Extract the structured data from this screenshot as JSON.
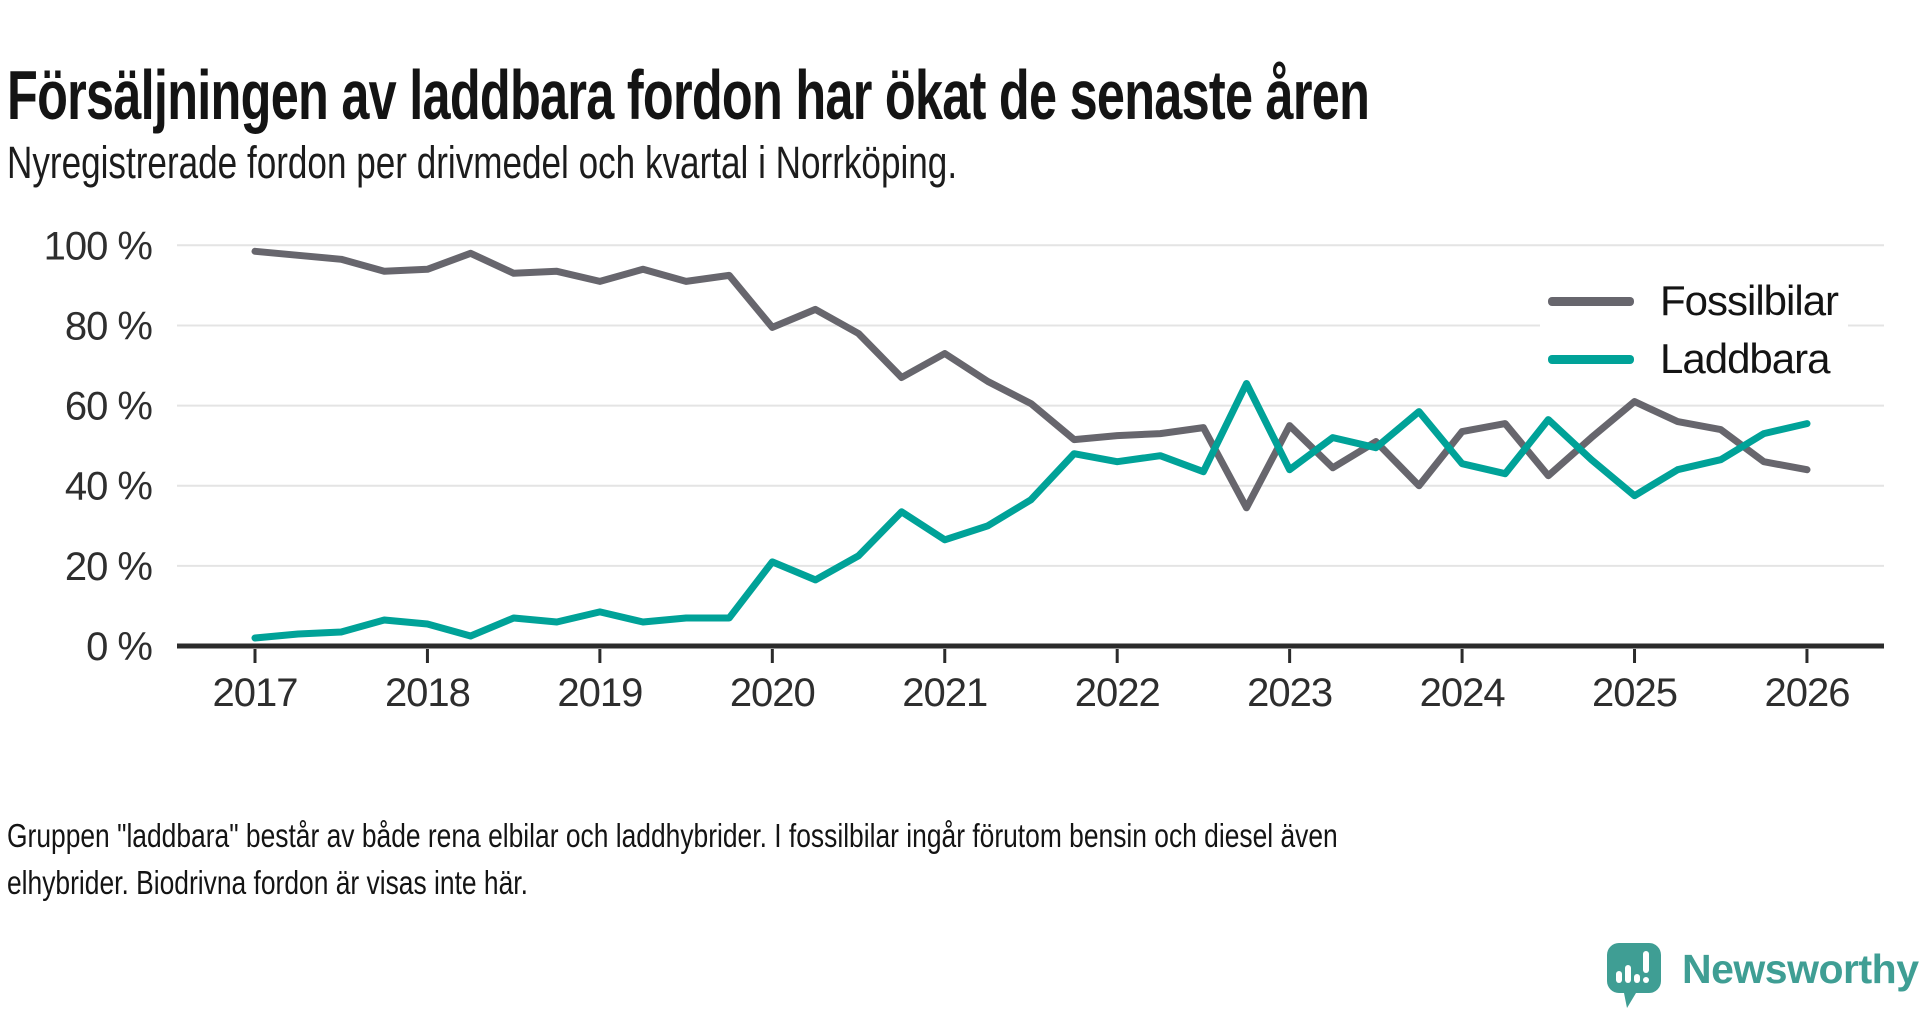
{
  "title": "Försäljningen av laddbara fordon har ökat de senaste åren",
  "subtitle": "Nyregistrerade fordon per drivmedel och kvartal i Norrköping.",
  "footnote": {
    "line1": "Gruppen \"laddbara\" består av både rena elbilar och laddhybrider. I fossilbilar ingår förutom bensin och diesel även",
    "line2": "elhybrider. Biodrivna fordon är visas inte här."
  },
  "logo": {
    "text": "Newsworthy",
    "color": "#3f9e94",
    "icon": "speech-bubble-bar-chart-exclamation"
  },
  "chart_data": {
    "type": "line",
    "title": "Nyregistrerade fordon per drivmedel och kvartal i Norrköping",
    "unit": "%",
    "ylim": [
      0,
      100
    ],
    "grid": "horizontal",
    "legend_position": "top-right",
    "y_ticks": [
      0,
      20,
      40,
      60,
      80,
      100
    ],
    "y_tick_labels": [
      "0 %",
      "20 %",
      "40 %",
      "60 %",
      "80 %",
      "100 %"
    ],
    "x_tick_labels": [
      "2017",
      "2018",
      "2019",
      "2020",
      "2021",
      "2022",
      "2023",
      "2024",
      "2025",
      "2026"
    ],
    "quarters": [
      "2017Q1",
      "2017Q2",
      "2017Q3",
      "2017Q4",
      "2018Q1",
      "2018Q2",
      "2018Q3",
      "2018Q4",
      "2019Q1",
      "2019Q2",
      "2019Q3",
      "2019Q4",
      "2020Q1",
      "2020Q2",
      "2020Q3",
      "2020Q4",
      "2021Q1",
      "2021Q2",
      "2021Q3",
      "2021Q4",
      "2022Q1",
      "2022Q2",
      "2022Q3",
      "2022Q4",
      "2023Q1",
      "2023Q2",
      "2023Q3",
      "2023Q4",
      "2024Q1",
      "2024Q2",
      "2024Q3",
      "2024Q4",
      "2025Q1",
      "2025Q2",
      "2025Q3",
      "2025Q4",
      "2026Q1"
    ],
    "series": [
      {
        "name": "Fossilbilar",
        "color": "#67666d",
        "values": [
          98.5,
          97.5,
          96.5,
          93.5,
          94,
          98,
          93,
          93.5,
          91,
          94,
          91,
          92.5,
          79.5,
          84,
          78,
          67,
          73,
          66,
          60.5,
          51.5,
          52.5,
          53,
          54.5,
          34.5,
          55,
          44.5,
          51,
          40,
          53.5,
          55.5,
          42.5,
          52,
          61,
          56,
          54,
          46,
          44
        ]
      },
      {
        "name": "Laddbara",
        "color": "#00a298",
        "values": [
          2,
          3,
          3.5,
          6.5,
          5.5,
          2.5,
          7,
          6,
          8.5,
          6,
          7,
          7,
          21,
          16.5,
          22.5,
          33.5,
          26.5,
          30,
          36.5,
          48,
          46,
          47.5,
          43.5,
          65.5,
          44,
          52,
          49.5,
          58.5,
          45.5,
          43,
          56.5,
          46.5,
          37.5,
          44,
          46.5,
          53,
          55.5
        ]
      }
    ],
    "axis_color": "#2b2b2b",
    "gridline_color": "#e4e4e4",
    "tick_label_color": "#2e2e2e"
  }
}
